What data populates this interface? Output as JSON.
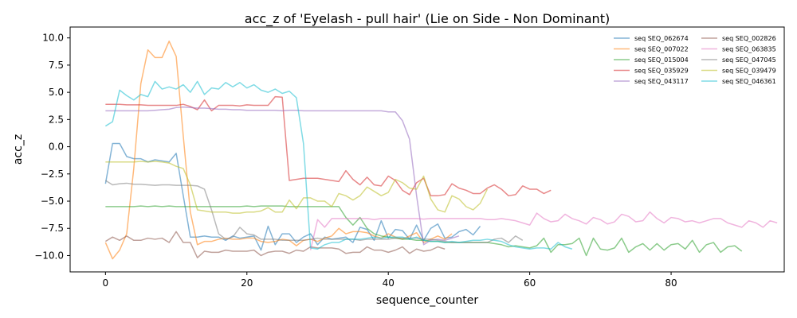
{
  "chart_data": {
    "type": "line",
    "title": "acc_z of 'Eyelash - pull hair' (Lie on Side - Non Dominant)",
    "xlabel": "sequence_counter",
    "ylabel": "acc_z",
    "xlim": [
      -5,
      96
    ],
    "ylim": [
      -11.5,
      11
    ],
    "xticks": [
      0,
      20,
      40,
      60,
      80
    ],
    "yticks": [
      -10.0,
      -7.5,
      -5.0,
      -2.5,
      0.0,
      2.5,
      5.0,
      7.5,
      10.0
    ],
    "ytick_labels": [
      "−10.0",
      "−7.5",
      "−5.0",
      "−2.5",
      "0.0",
      "2.5",
      "5.0",
      "7.5",
      "10.0"
    ],
    "grid": false,
    "legend": {
      "placement": "top-right",
      "columns": 2
    },
    "series": [
      {
        "name": "seq SEQ_062674",
        "color": "#1f77b4",
        "values": [
          -3.4,
          0.3,
          0.3,
          -0.9,
          -1.1,
          -1.1,
          -1.4,
          -1.2,
          -1.3,
          -1.4,
          -0.6,
          -4.5,
          -8.3,
          -8.3,
          -8.2,
          -8.3,
          -8.3,
          -8.6,
          -8.2,
          -8.4,
          -8.3,
          -8.2,
          -9.5,
          -7.3,
          -9.0,
          -8.0,
          -8.0,
          -8.8,
          -8.3,
          -8.0,
          -9.0,
          -8.3,
          -8.5,
          -8.4,
          -8.3,
          -8.8,
          -7.4,
          -7.6,
          -8.6,
          -6.8,
          -8.4,
          -7.6,
          -7.7,
          -8.5,
          -7.2,
          -8.6,
          -7.5,
          -7.1,
          -8.4,
          -8.3,
          -7.8,
          -7.6,
          -8.1,
          -7.3
        ]
      },
      {
        "name": "seq SEQ_007022",
        "color": "#ff7f0e",
        "values": [
          -8.8,
          -10.3,
          -9.5,
          -8.0,
          -2.0,
          5.8,
          8.9,
          8.2,
          8.2,
          9.7,
          8.3,
          1.0,
          -6.0,
          -9.0,
          -8.7,
          -8.7,
          -8.5,
          -8.4,
          -8.5,
          -8.5,
          -8.4,
          -8.4,
          -8.7,
          -8.8,
          -8.7,
          -8.5,
          -8.6,
          -9.1,
          -8.6,
          -8.5,
          -8.7,
          -8.4,
          -8.2,
          -7.5,
          -8.0,
          -7.8,
          -7.8,
          -7.9,
          -8.2,
          -8.4,
          -8.0,
          -8.3,
          -8.5,
          -8.2,
          -7.9,
          -8.8,
          -8.5,
          -8.2,
          -8.5,
          -8.0
        ]
      },
      {
        "name": "seq SEQ_015004",
        "color": "#2ca02c",
        "values": [
          -5.5,
          -5.5,
          -5.5,
          -5.5,
          -5.5,
          -5.45,
          -5.5,
          -5.45,
          -5.5,
          -5.45,
          -5.5,
          -5.5,
          -5.5,
          -5.5,
          -5.5,
          -5.5,
          -5.5,
          -5.5,
          -5.5,
          -5.5,
          -5.45,
          -5.5,
          -5.45,
          -5.45,
          -5.45,
          -5.45,
          -5.5,
          -5.5,
          -5.5,
          -5.5,
          -5.5,
          -5.5,
          -5.5,
          -5.5,
          -6.5,
          -7.2,
          -6.5,
          -7.5,
          -8.0,
          -8.2,
          -8.3,
          -8.4,
          -8.5,
          -8.5,
          -8.6,
          -8.6,
          -8.7,
          -8.7,
          -8.8,
          -8.8,
          -8.8,
          -8.8,
          -8.8,
          -8.8,
          -8.8,
          -8.9,
          -9.0,
          -9.2,
          -9.1,
          -9.2,
          -9.3,
          -9.1,
          -8.4,
          -9.7,
          -9.0,
          -9.0,
          -8.9,
          -8.4,
          -10.0,
          -8.4,
          -9.4,
          -9.5,
          -9.3,
          -8.4,
          -9.7,
          -9.2,
          -8.9,
          -9.5,
          -8.9,
          -9.5,
          -9.0,
          -8.9,
          -9.4,
          -8.6,
          -9.7,
          -9.0,
          -8.8,
          -9.7,
          -9.2,
          -9.1,
          -9.6
        ]
      },
      {
        "name": "seq SEQ_035929",
        "color": "#d62728",
        "values": [
          3.9,
          3.9,
          3.9,
          3.85,
          3.85,
          3.85,
          3.8,
          3.8,
          3.8,
          3.8,
          3.8,
          3.9,
          3.7,
          3.4,
          4.3,
          3.3,
          3.8,
          3.8,
          3.8,
          3.75,
          3.85,
          3.8,
          3.8,
          3.8,
          4.6,
          4.55,
          -3.1,
          -3.0,
          -2.9,
          -2.9,
          -2.9,
          -3.0,
          -3.1,
          -3.2,
          -2.2,
          -3.0,
          -3.5,
          -2.8,
          -3.5,
          -3.6,
          -2.7,
          -3.1,
          -4.0,
          -4.4,
          -3.3,
          -2.9,
          -4.5,
          -4.5,
          -4.4,
          -3.4,
          -3.8,
          -4.0,
          -4.3,
          -4.3,
          -3.8,
          -3.5,
          -3.9,
          -4.5,
          -4.4,
          -3.6,
          -3.9,
          -3.9,
          -4.3,
          -4.0
        ]
      },
      {
        "name": "seq SEQ_043117",
        "color": "#9467bd",
        "values": [
          3.3,
          3.3,
          3.3,
          3.3,
          3.3,
          3.3,
          3.3,
          3.35,
          3.4,
          3.45,
          3.6,
          3.65,
          3.6,
          3.55,
          3.55,
          3.5,
          3.45,
          3.45,
          3.4,
          3.4,
          3.35,
          3.35,
          3.35,
          3.35,
          3.35,
          3.3,
          3.35,
          3.35,
          3.3,
          3.3,
          3.3,
          3.3,
          3.3,
          3.3,
          3.3,
          3.3,
          3.3,
          3.3,
          3.3,
          3.3,
          3.2,
          3.2,
          2.4,
          0.7,
          -4.5,
          -9.0,
          -8.6,
          -8.5,
          -8.6,
          -8.4,
          -8.2
        ]
      },
      {
        "name": "seq SEQ_002826",
        "color": "#8c564b",
        "values": [
          -8.7,
          -8.3,
          -8.6,
          -8.2,
          -8.6,
          -8.6,
          -8.4,
          -8.5,
          -8.4,
          -8.8,
          -7.8,
          -8.8,
          -8.8,
          -10.2,
          -9.6,
          -9.7,
          -9.7,
          -9.5,
          -9.6,
          -9.6,
          -9.6,
          -9.5,
          -10.0,
          -9.7,
          -9.6,
          -9.6,
          -9.8,
          -9.5,
          -9.6,
          -9.2,
          -9.3,
          -9.3,
          -9.3,
          -9.4,
          -9.8,
          -9.7,
          -9.7,
          -9.2,
          -9.5,
          -9.5,
          -9.7,
          -9.5,
          -9.2,
          -9.8,
          -9.4,
          -9.6,
          -9.5,
          -9.2,
          -9.4
        ]
      },
      {
        "name": "seq SEQ_063835",
        "color": "#e377c2",
        "start": 29,
        "values": [
          -9.5,
          -6.7,
          -7.4,
          -6.6,
          -6.6,
          -6.6,
          -6.6,
          -6.6,
          -6.6,
          -6.7,
          -6.6,
          -6.6,
          -6.6,
          -6.6,
          -6.6,
          -6.6,
          -6.65,
          -6.6,
          -6.6,
          -6.6,
          -6.6,
          -6.6,
          -6.6,
          -6.6,
          -6.6,
          -6.7,
          -6.7,
          -6.6,
          -6.7,
          -6.8,
          -7.0,
          -7.2,
          -6.1,
          -6.6,
          -6.9,
          -6.8,
          -6.2,
          -6.6,
          -6.8,
          -7.1,
          -6.5,
          -6.7,
          -7.1,
          -6.9,
          -6.2,
          -6.4,
          -6.9,
          -6.8,
          -6.0,
          -6.6,
          -7.0,
          -6.5,
          -6.6,
          -6.9,
          -6.8,
          -7.0,
          -6.8,
          -6.6,
          -6.6,
          -7.0,
          -7.2,
          -7.4,
          -6.8,
          -7.0,
          -7.4,
          -6.8,
          -7.0
        ]
      },
      {
        "name": "seq SEQ_047045",
        "color": "#7f7f7f",
        "values": [
          -3.1,
          -3.5,
          -3.4,
          -3.35,
          -3.45,
          -3.45,
          -3.5,
          -3.55,
          -3.5,
          -3.5,
          -3.55,
          -3.55,
          -3.55,
          -3.6,
          -3.9,
          -5.8,
          -8.0,
          -8.5,
          -8.3,
          -7.4,
          -8.0,
          -8.1,
          -8.5,
          -8.5,
          -8.5,
          -8.6,
          -8.6,
          -8.6,
          -8.6,
          -8.5,
          -8.4,
          -8.5,
          -8.5,
          -8.5,
          -8.5,
          -8.5,
          -8.6,
          -8.5,
          -8.5,
          -8.5,
          -8.5,
          -8.4,
          -8.4,
          -8.4,
          -8.4,
          -8.5,
          -8.5,
          -8.6,
          -8.7,
          -8.8,
          -8.8,
          -8.8,
          -8.8,
          -8.8,
          -8.8,
          -8.5,
          -8.4,
          -8.8,
          -8.2,
          -8.6
        ]
      },
      {
        "name": "seq SEQ_039479",
        "color": "#bcbd22",
        "values": [
          -1.4,
          -1.4,
          -1.4,
          -1.4,
          -1.4,
          -1.35,
          -1.4,
          -1.35,
          -1.4,
          -1.5,
          -1.8,
          -2.0,
          -3.5,
          -5.8,
          -5.9,
          -6.0,
          -6.0,
          -6.0,
          -6.1,
          -6.1,
          -6.0,
          -6.0,
          -5.9,
          -5.6,
          -6.0,
          -6.0,
          -4.9,
          -5.7,
          -4.7,
          -4.7,
          -5.0,
          -5.0,
          -5.5,
          -4.3,
          -4.5,
          -4.9,
          -4.5,
          -3.7,
          -4.1,
          -4.5,
          -4.2,
          -3.0,
          -3.3,
          -3.8,
          -3.9,
          -2.7,
          -4.8,
          -5.8,
          -6.0,
          -4.5,
          -4.8,
          -5.5,
          -5.8,
          -5.2,
          -3.9
        ]
      },
      {
        "name": "seq SEQ_046361",
        "color": "#17becf",
        "values": [
          1.9,
          2.3,
          5.2,
          4.7,
          4.3,
          4.8,
          4.6,
          6.0,
          5.3,
          5.5,
          5.3,
          5.7,
          5.0,
          6.0,
          4.8,
          5.4,
          5.3,
          5.9,
          5.5,
          5.9,
          5.4,
          5.7,
          5.2,
          5.0,
          5.3,
          4.9,
          5.1,
          4.5,
          0.3,
          -9.3,
          -9.4,
          -9.0,
          -8.8,
          -8.8,
          -8.5,
          -8.5,
          -8.5,
          -8.4,
          -8.3,
          -8.4,
          -8.3,
          -8.3,
          -8.3,
          -8.5,
          -8.3,
          -8.6,
          -8.7,
          -8.7,
          -8.8,
          -8.7,
          -8.8,
          -8.7,
          -8.6,
          -8.6,
          -8.5,
          -8.6,
          -8.7,
          -9.0,
          -9.2,
          -9.3,
          -9.4,
          -9.3,
          -9.3,
          -9.4,
          -8.8,
          -9.2,
          -9.4
        ]
      }
    ]
  }
}
